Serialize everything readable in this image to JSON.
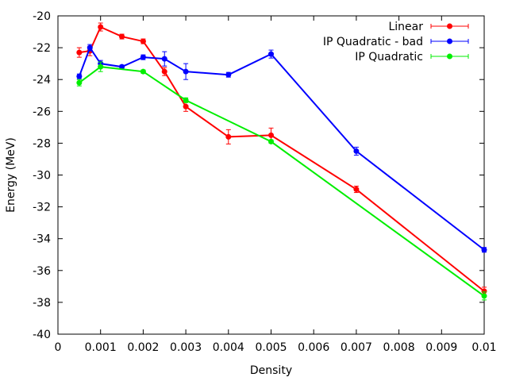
{
  "chart_data": {
    "type": "line",
    "title": "",
    "xlabel": "Density",
    "ylabel": "Energy (MeV)",
    "xlim": [
      0,
      0.01
    ],
    "ylim": [
      -40,
      -20
    ],
    "x_ticks": [
      0,
      0.001,
      0.002,
      0.003,
      0.004,
      0.005,
      0.006,
      0.007,
      0.008,
      0.009,
      0.01
    ],
    "x_tick_labels": [
      "0",
      "0.001",
      "0.002",
      "0.003",
      "0.004",
      "0.005",
      "0.006",
      "0.007",
      "0.008",
      "0.009",
      "0.01"
    ],
    "y_ticks": [
      -20,
      -22,
      -24,
      -26,
      -28,
      -30,
      -32,
      -34,
      -36,
      -38,
      -40
    ],
    "y_tick_labels": [
      "-20",
      "-22",
      "-24",
      "-26",
      "-28",
      "-30",
      "-32",
      "-34",
      "-36",
      "-38",
      "-40"
    ],
    "grid": false,
    "legend_position": "top-right",
    "error_bars": true,
    "series": [
      {
        "name": "Linear",
        "color": "#ff0000",
        "x": [
          0.0005,
          0.00075,
          0.001,
          0.0015,
          0.002,
          0.0025,
          0.003,
          0.004,
          0.005,
          0.007,
          0.01
        ],
        "y": [
          -22.3,
          -22.2,
          -20.7,
          -21.3,
          -21.6,
          -23.5,
          -25.7,
          -27.6,
          -27.5,
          -30.9,
          -37.3
        ],
        "yerr": [
          0.3,
          0.3,
          0.25,
          0.15,
          0.15,
          0.25,
          0.3,
          0.45,
          0.45,
          0.2,
          0.25
        ]
      },
      {
        "name": "IP Quadratic - bad",
        "color": "#0000ff",
        "x": [
          0.0005,
          0.00075,
          0.001,
          0.0015,
          0.002,
          0.0025,
          0.003,
          0.004,
          0.005,
          0.007,
          0.01
        ],
        "y": [
          -23.8,
          -22.0,
          -23.0,
          -23.2,
          -22.6,
          -22.7,
          -23.5,
          -23.7,
          -22.4,
          -28.5,
          -34.7
        ],
        "yerr": [
          0.15,
          0.2,
          0.2,
          0.1,
          0.15,
          0.45,
          0.5,
          0.15,
          0.25,
          0.25,
          0.15
        ]
      },
      {
        "name": "IP Quadratic",
        "color": "#00ee00",
        "x": [
          0.0005,
          0.001,
          0.002,
          0.003,
          0.005,
          0.01
        ],
        "y": [
          -24.2,
          -23.2,
          -23.5,
          -25.3,
          -27.9,
          -37.6
        ],
        "yerr": [
          0.2,
          0.3,
          0.1,
          0.15,
          0.1,
          0.25
        ]
      }
    ]
  }
}
